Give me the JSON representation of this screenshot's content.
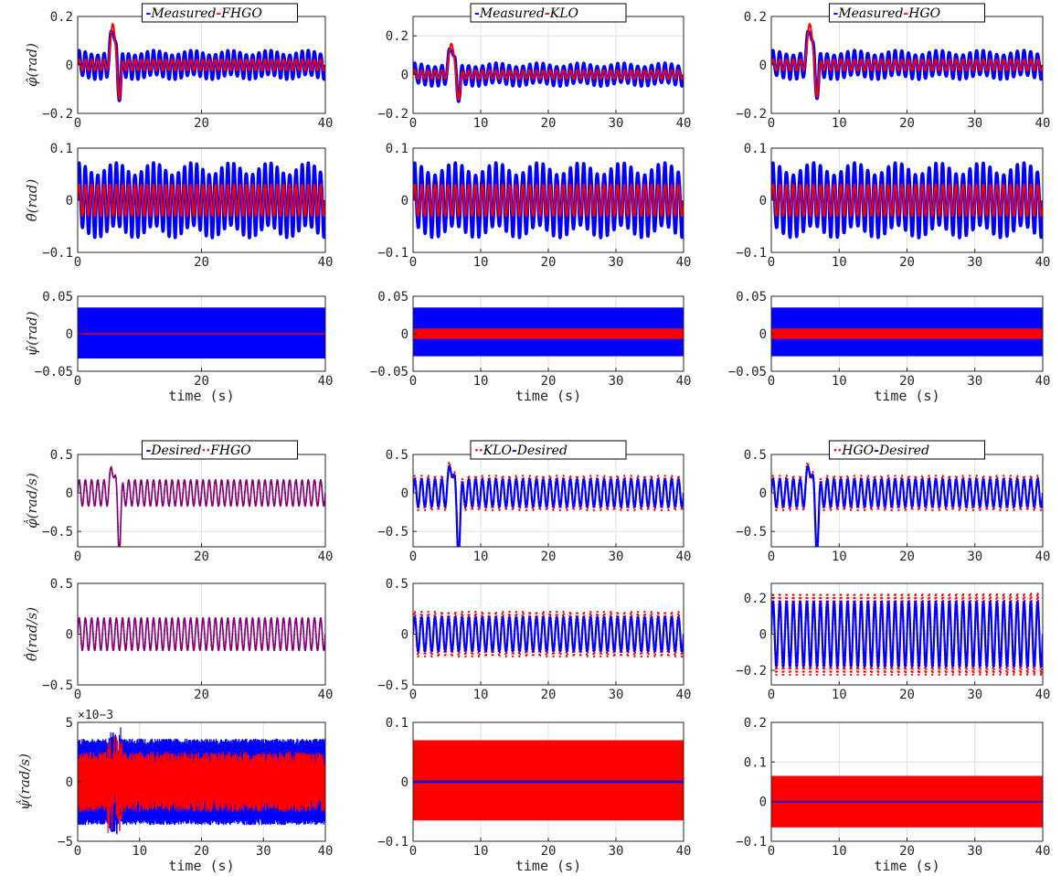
{
  "figure": {
    "background": "#ffffff",
    "colors": {
      "blue": "#0000ff",
      "red": "#ff0000",
      "purple": "#800080",
      "grid": "#e0e0e0",
      "axis": "#262626"
    }
  },
  "chart_data": [
    {
      "type": "line",
      "row": 0,
      "col": 0,
      "ylabel": "φ̂(rad)",
      "xlabel": "",
      "legend": [
        "Measured",
        "FHGO"
      ],
      "legend_prefix": "-",
      "legend_sep": "-",
      "legend_colors": [
        "blue",
        "red"
      ],
      "legend_markers": [
        "solid",
        "solid"
      ],
      "xlim": [
        0,
        40
      ],
      "ylim": [
        -0.2,
        0.2
      ],
      "xticks": [
        0,
        20,
        40
      ],
      "yticks": [
        -0.2,
        0,
        0.2
      ],
      "yticklabels": [
        "-0.2",
        "0",
        "0.2"
      ],
      "sig": {
        "kind": "osc",
        "amp": 0.05,
        "red_ratio": 0.45,
        "transient": {
          "t": 6,
          "peak": 0.19,
          "dip": -0.12
        },
        "freq": 1.0
      }
    },
    {
      "type": "line",
      "row": 0,
      "col": 1,
      "ylabel": "",
      "xlabel": "",
      "legend": [
        "Measured",
        "KLO"
      ],
      "legend_prefix": "-",
      "legend_sep": "-",
      "legend_colors": [
        "blue",
        "red"
      ],
      "legend_markers": [
        "solid",
        "solid"
      ],
      "xlim": [
        0,
        40
      ],
      "ylim": [
        -0.2,
        0.3
      ],
      "xticks": [
        0,
        10,
        20,
        30,
        40
      ],
      "yticks": [
        -0.2,
        0,
        0.2
      ],
      "yticklabels": [
        "-0.2",
        "0",
        "0.2"
      ],
      "sig": {
        "kind": "osc",
        "amp": 0.05,
        "red_ratio": 0.45,
        "transient": {
          "t": 6,
          "peak": 0.18,
          "dip": -0.11
        },
        "freq": 1.0
      }
    },
    {
      "type": "line",
      "row": 0,
      "col": 2,
      "ylabel": "",
      "xlabel": "",
      "legend": [
        "Measured",
        "HGO"
      ],
      "legend_prefix": "-",
      "legend_sep": "-",
      "legend_colors": [
        "blue",
        "red"
      ],
      "legend_markers": [
        "solid",
        "solid"
      ],
      "xlim": [
        0,
        40
      ],
      "ylim": [
        -0.2,
        0.2
      ],
      "xticks": [
        0,
        10,
        20,
        30,
        40
      ],
      "yticks": [
        -0.2,
        0,
        0.2
      ],
      "yticklabels": [
        "-0.2",
        "0",
        "0.2"
      ],
      "sig": {
        "kind": "osc",
        "amp": 0.05,
        "red_ratio": 0.45,
        "transient": {
          "t": 6,
          "peak": 0.19,
          "dip": -0.11
        },
        "freq": 1.0
      }
    },
    {
      "type": "line",
      "row": 1,
      "col": 0,
      "ylabel": "θ̂(rad)",
      "xlabel": "",
      "legend": [],
      "xlim": [
        0,
        40
      ],
      "ylim": [
        -0.1,
        0.1
      ],
      "xticks": [
        0,
        20,
        40
      ],
      "yticks": [
        -0.1,
        0,
        0.1
      ],
      "yticklabels": [
        "-0.1",
        "0",
        "0.1"
      ],
      "sig": {
        "kind": "osc",
        "amp": 0.06,
        "red_ratio": 0.5,
        "transient": null,
        "freq": 1.0
      }
    },
    {
      "type": "line",
      "row": 1,
      "col": 1,
      "ylabel": "",
      "xlabel": "",
      "legend": [],
      "xlim": [
        0,
        40
      ],
      "ylim": [
        -0.1,
        0.1
      ],
      "xticks": [
        0,
        10,
        20,
        30,
        40
      ],
      "yticks": [
        -0.1,
        0,
        0.1
      ],
      "yticklabels": [
        "-0.1",
        "0",
        "0.1"
      ],
      "sig": {
        "kind": "osc",
        "amp": 0.06,
        "red_ratio": 0.5,
        "transient": null,
        "freq": 1.0
      }
    },
    {
      "type": "line",
      "row": 1,
      "col": 2,
      "ylabel": "",
      "xlabel": "",
      "legend": [],
      "xlim": [
        0,
        40
      ],
      "ylim": [
        -0.1,
        0.1
      ],
      "xticks": [
        0,
        10,
        20,
        30,
        40
      ],
      "yticks": [
        -0.1,
        0,
        0.1
      ],
      "yticklabels": [
        "-0.1",
        "0",
        "0.1"
      ],
      "sig": {
        "kind": "osc",
        "amp": 0.06,
        "red_ratio": 0.5,
        "transient": null,
        "freq": 1.0
      }
    },
    {
      "type": "line",
      "row": 2,
      "col": 0,
      "ylabel": "ψ̂(rad)",
      "xlabel": "time (s)",
      "legend": [],
      "xlim": [
        0,
        40
      ],
      "ylim": [
        -0.05,
        0.05
      ],
      "xticks": [
        0,
        20,
        40
      ],
      "yticks": [
        -0.05,
        0,
        0.05
      ],
      "yticklabels": [
        "-0.05",
        "0",
        "0.05"
      ],
      "sig": {
        "kind": "band",
        "blue": [
          -0.033,
          0.035
        ],
        "red": [
          -0.0008,
          0.0008
        ]
      }
    },
    {
      "type": "line",
      "row": 2,
      "col": 1,
      "ylabel": "",
      "xlabel": "time (s)",
      "legend": [],
      "xlim": [
        0,
        40
      ],
      "ylim": [
        -0.05,
        0.05
      ],
      "xticks": [
        0,
        10,
        20,
        30,
        40
      ],
      "yticks": [
        -0.05,
        0,
        0.05
      ],
      "yticklabels": [
        "-0.05",
        "0",
        "0.05"
      ],
      "sig": {
        "kind": "band",
        "blue": [
          -0.03,
          0.035
        ],
        "red": [
          -0.007,
          0.007
        ]
      }
    },
    {
      "type": "line",
      "row": 2,
      "col": 2,
      "ylabel": "",
      "xlabel": "time (s)",
      "legend": [],
      "xlim": [
        0,
        40
      ],
      "ylim": [
        -0.05,
        0.05
      ],
      "xticks": [
        0,
        10,
        20,
        30,
        40
      ],
      "yticks": [
        -0.05,
        0,
        0.05
      ],
      "yticklabels": [
        "-0.05",
        "0",
        "0.05"
      ],
      "sig": {
        "kind": "band",
        "blue": [
          -0.03,
          0.035
        ],
        "red": [
          -0.007,
          0.007
        ]
      }
    },
    {
      "type": "line",
      "row": 3,
      "col": 0,
      "ylabel": "φ̂̇(rad/s)",
      "xlabel": "",
      "legend": [
        "Desired",
        "FHGO"
      ],
      "legend_prefix": "-",
      "legend_sep": "··",
      "legend_colors": [
        "blue",
        "red"
      ],
      "legend_markers": [
        "solid",
        "dotted"
      ],
      "xlim": [
        0,
        40
      ],
      "ylim": [
        -0.7,
        0.5
      ],
      "xticks": [
        0,
        20,
        40
      ],
      "yticks": [
        -0.5,
        0,
        0.5
      ],
      "yticklabels": [
        "-0.5",
        "0",
        "0.5"
      ],
      "sig": {
        "kind": "track",
        "amp": 0.17,
        "red_ratio": 1.0,
        "transient": {
          "t": 6,
          "peak": 0.4,
          "dip": -0.65
        },
        "freq": 1.0,
        "blue_color": "purple"
      }
    },
    {
      "type": "line",
      "row": 3,
      "col": 1,
      "ylabel": "",
      "xlabel": "",
      "legend": [
        "KLO",
        "Desired"
      ],
      "legend_prefix": "··",
      "legend_sep": "-",
      "legend_colors": [
        "red",
        "blue"
      ],
      "legend_markers": [
        "dotted",
        "solid"
      ],
      "xlim": [
        0,
        40
      ],
      "ylim": [
        -0.7,
        0.5
      ],
      "xticks": [
        0,
        10,
        20,
        30,
        40
      ],
      "yticks": [
        -0.5,
        0,
        0.5
      ],
      "yticklabels": [
        "-0.5",
        "0",
        "0.5"
      ],
      "sig": {
        "kind": "track",
        "amp": 0.18,
        "red_ratio": 1.25,
        "transient": {
          "t": 6,
          "peak": 0.42,
          "dip": -0.68
        },
        "freq": 1.0
      }
    },
    {
      "type": "line",
      "row": 3,
      "col": 2,
      "ylabel": "",
      "xlabel": "",
      "legend": [
        "HGO",
        "Desired"
      ],
      "legend_prefix": "··",
      "legend_sep": "-",
      "legend_colors": [
        "red",
        "blue"
      ],
      "legend_markers": [
        "dotted",
        "solid"
      ],
      "xlim": [
        0,
        40
      ],
      "ylim": [
        -0.7,
        0.5
      ],
      "xticks": [
        0,
        10,
        20,
        30,
        40
      ],
      "yticks": [
        -0.5,
        0,
        0.5
      ],
      "yticklabels": [
        "-0.5",
        "0",
        "0.5"
      ],
      "sig": {
        "kind": "track",
        "amp": 0.18,
        "red_ratio": 1.25,
        "transient": {
          "t": 6,
          "peak": 0.42,
          "dip": -0.66
        },
        "freq": 1.0
      }
    },
    {
      "type": "line",
      "row": 4,
      "col": 0,
      "ylabel": "θ̂̇(rad/s)",
      "xlabel": "",
      "legend": [],
      "xlim": [
        0,
        40
      ],
      "ylim": [
        -0.5,
        0.5
      ],
      "xticks": [
        0,
        20,
        40
      ],
      "yticks": [
        -0.5,
        0,
        0.5
      ],
      "yticklabels": [
        "-0.5",
        "0",
        "0.5"
      ],
      "sig": {
        "kind": "track",
        "amp": 0.16,
        "red_ratio": 1.0,
        "transient": null,
        "freq": 1.0,
        "blue_color": "purple"
      }
    },
    {
      "type": "line",
      "row": 4,
      "col": 1,
      "ylabel": "",
      "xlabel": "",
      "legend": [],
      "xlim": [
        0,
        40
      ],
      "ylim": [
        -0.5,
        0.5
      ],
      "xticks": [
        0,
        10,
        20,
        30,
        40
      ],
      "yticks": [
        -0.5,
        0,
        0.5
      ],
      "yticklabels": [
        "-0.5",
        "0",
        "0.5"
      ],
      "sig": {
        "kind": "track",
        "amp": 0.17,
        "red_ratio": 1.3,
        "transient": null,
        "freq": 1.0
      }
    },
    {
      "type": "line",
      "row": 4,
      "col": 2,
      "ylabel": "",
      "xlabel": "",
      "legend": [],
      "xlim": [
        0,
        40
      ],
      "ylim": [
        -0.28,
        0.28
      ],
      "xticks": [
        0,
        10,
        20,
        30,
        40
      ],
      "yticks": [
        -0.2,
        0,
        0.2
      ],
      "yticklabels": [
        "-0.2",
        "0",
        "0.2"
      ],
      "sig": {
        "kind": "track",
        "amp": 0.18,
        "red_ratio": 1.25,
        "transient": null,
        "freq": 1.0
      }
    },
    {
      "type": "line",
      "row": 5,
      "col": 0,
      "ylabel": "ψ̂̇(rad/s)",
      "xlabel": "time (s)",
      "legend": [],
      "exponent": "×10−3",
      "xlim": [
        0,
        40
      ],
      "ylim": [
        -5,
        5
      ],
      "xticks": [
        0,
        10,
        20,
        30,
        40
      ],
      "yticks": [
        -5,
        0,
        5
      ],
      "yticklabels": [
        "-5",
        "0",
        "5"
      ],
      "sig": {
        "kind": "noise",
        "blue_amp": 3.6,
        "red_amp": 2.5,
        "spike": {
          "t": 6,
          "peak": 4.5
        }
      }
    },
    {
      "type": "line",
      "row": 5,
      "col": 1,
      "ylabel": "",
      "xlabel": "time (s)",
      "legend": [],
      "xlim": [
        0,
        40
      ],
      "ylim": [
        -0.1,
        0.1
      ],
      "xticks": [
        0,
        10,
        20,
        30,
        40
      ],
      "yticks": [
        -0.1,
        0,
        0.1
      ],
      "yticklabels": [
        "-0.1",
        "0",
        "0.1"
      ],
      "sig": {
        "kind": "redband",
        "red": [
          -0.065,
          0.07
        ],
        "blue": [
          -0.002,
          0.002
        ]
      }
    },
    {
      "type": "line",
      "row": 5,
      "col": 2,
      "ylabel": "",
      "xlabel": "time (s)",
      "legend": [],
      "xlim": [
        0,
        40
      ],
      "ylim": [
        -0.1,
        0.2
      ],
      "xticks": [
        0,
        10,
        20,
        30,
        40
      ],
      "yticks": [
        -0.1,
        0,
        0.1,
        0.2
      ],
      "yticklabels": [
        "-0.1",
        "0",
        "0.1",
        "0.2"
      ],
      "sig": {
        "kind": "redband",
        "red": [
          -0.065,
          0.065
        ],
        "blue": [
          -0.002,
          0.002
        ]
      }
    }
  ]
}
